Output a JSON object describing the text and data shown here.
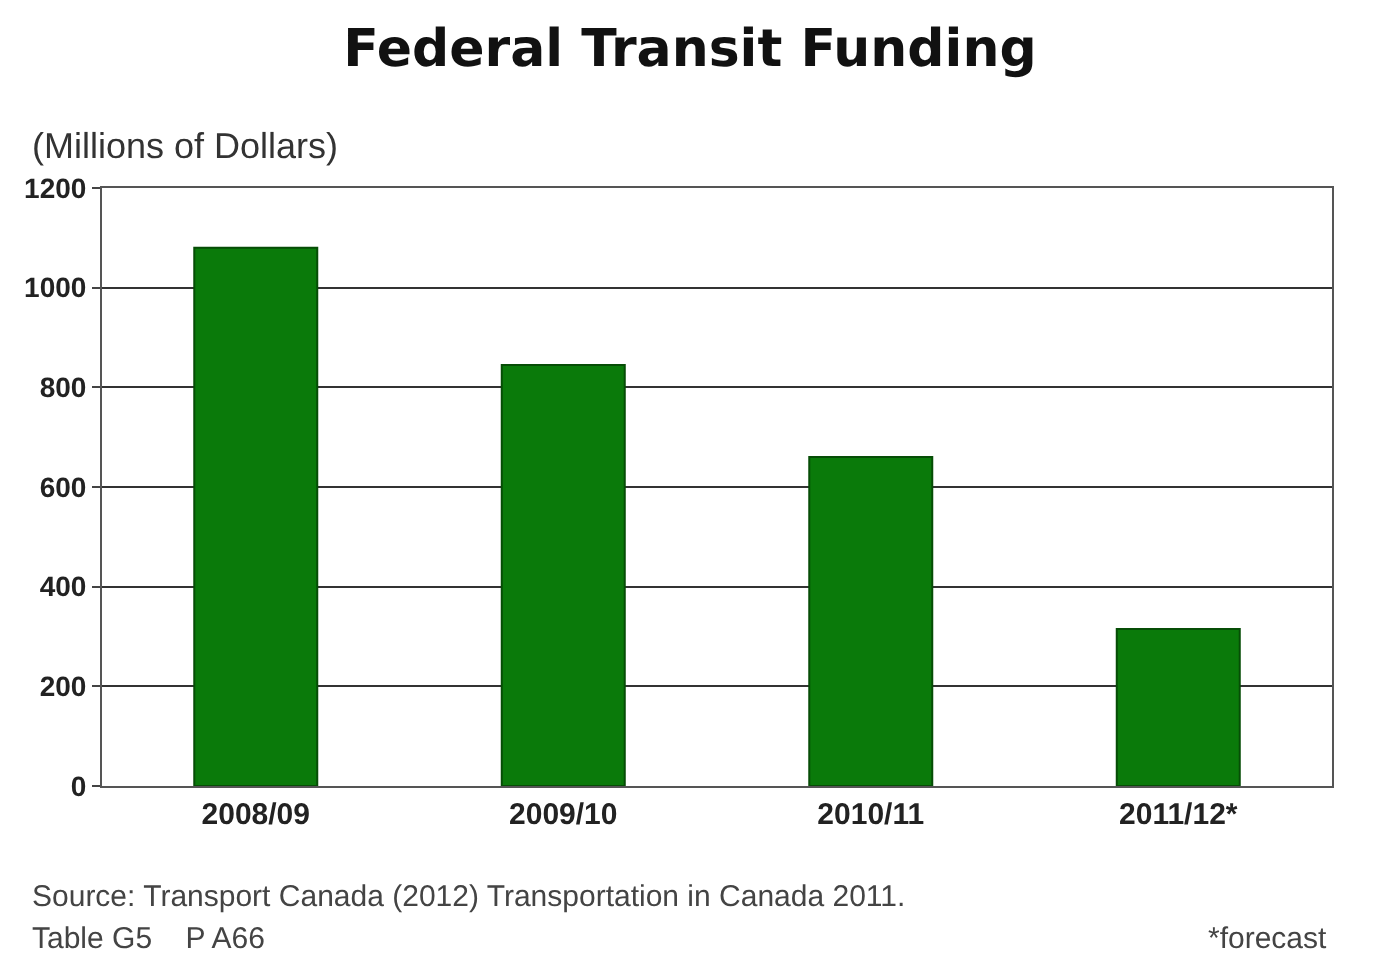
{
  "chart_data": {
    "type": "bar",
    "title": "Federal Transit Funding",
    "subtitle": "(Millions of Dollars)",
    "categories": [
      "2008/09",
      "2009/10",
      "2010/11",
      "2011/12*"
    ],
    "values": [
      1080,
      845,
      660,
      315
    ],
    "color": "#0a7a0a",
    "ylim": [
      0,
      1200
    ],
    "yticks": [
      0,
      200,
      400,
      600,
      800,
      1000,
      1200
    ],
    "grid": "y",
    "annotations": [
      "Source: Transport Canada (2012) Transportation in Canada 2011.",
      "Table G5    P A66",
      "*forecast"
    ]
  }
}
